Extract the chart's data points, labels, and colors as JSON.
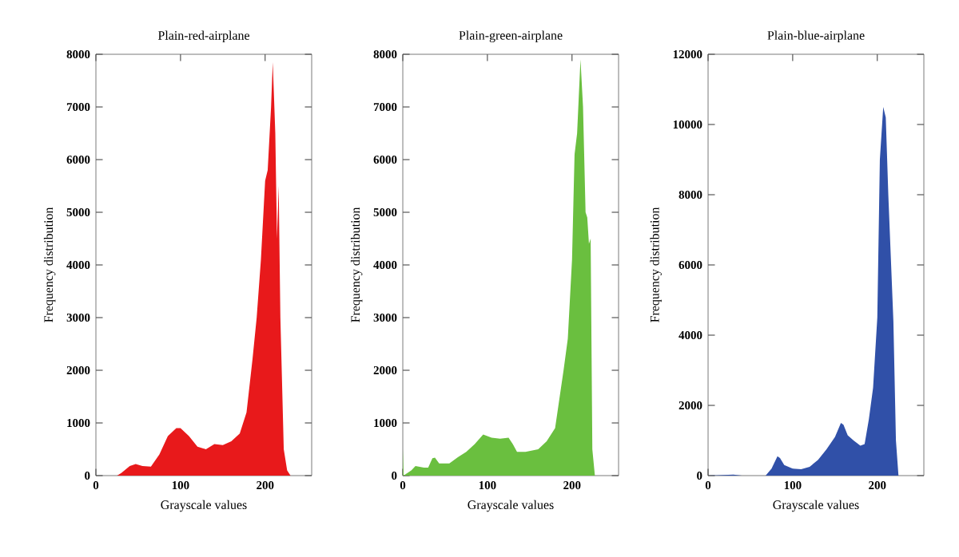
{
  "chart_data": [
    {
      "type": "area",
      "title": "Plain-red-airplane",
      "xlabel": "Grayscale values",
      "ylabel": "Frequency distribution",
      "color": "#e8191b",
      "xlim": [
        0,
        255
      ],
      "ylim": [
        0,
        8000
      ],
      "xticks": [
        0,
        100,
        200
      ],
      "yticks": [
        0,
        1000,
        2000,
        3000,
        4000,
        5000,
        6000,
        7000,
        8000
      ],
      "x": [
        0,
        25,
        30,
        40,
        47,
        55,
        65,
        75,
        85,
        95,
        100,
        110,
        120,
        130,
        140,
        150,
        160,
        170,
        178,
        185,
        190,
        195,
        200,
        203,
        207,
        209,
        212,
        214,
        216,
        218,
        222,
        226,
        230,
        255
      ],
      "values": [
        0,
        0,
        50,
        180,
        220,
        180,
        170,
        400,
        750,
        900,
        900,
        750,
        550,
        500,
        600,
        580,
        650,
        800,
        1200,
        2200,
        3000,
        4100,
        5600,
        5800,
        7000,
        7850,
        6500,
        4500,
        5500,
        3000,
        500,
        100,
        0,
        0
      ]
    },
    {
      "type": "area",
      "title": "Plain-green-airplane",
      "xlabel": "Grayscale values",
      "ylabel": "Frequency distribution",
      "color": "#6abf3f",
      "xlim": [
        0,
        255
      ],
      "ylim": [
        0,
        8000
      ],
      "xticks": [
        0,
        100,
        200
      ],
      "yticks": [
        0,
        1000,
        2000,
        3000,
        4000,
        5000,
        6000,
        7000,
        8000
      ],
      "x": [
        0,
        1,
        10,
        15,
        25,
        30,
        35,
        38,
        43,
        55,
        65,
        75,
        85,
        95,
        105,
        115,
        125,
        130,
        135,
        145,
        160,
        170,
        180,
        190,
        195,
        200,
        203,
        206,
        210,
        213,
        216,
        218,
        220,
        222,
        224,
        227,
        255
      ],
      "values": [
        500,
        0,
        100,
        180,
        150,
        150,
        330,
        340,
        230,
        230,
        350,
        450,
        600,
        780,
        720,
        700,
        720,
        600,
        450,
        450,
        500,
        650,
        900,
        2000,
        2600,
        4100,
        6100,
        6500,
        7900,
        7000,
        5000,
        4900,
        4400,
        4500,
        500,
        0,
        0
      ]
    },
    {
      "type": "area",
      "title": "Plain-blue-airplane",
      "xlabel": "Grayscale values",
      "ylabel": "Frequency distribution",
      "color": "#3050a8",
      "xlim": [
        0,
        255
      ],
      "ylim": [
        0,
        12000
      ],
      "xticks": [
        0,
        100,
        200
      ],
      "yticks": [
        0,
        2000,
        4000,
        6000,
        8000,
        10000,
        12000
      ],
      "x": [
        0,
        30,
        40,
        68,
        75,
        82,
        85,
        90,
        100,
        110,
        120,
        130,
        140,
        150,
        157,
        160,
        165,
        172,
        180,
        185,
        190,
        195,
        200,
        203,
        207,
        210,
        213,
        216,
        219,
        222,
        225,
        255
      ],
      "values": [
        0,
        30,
        0,
        0,
        200,
        550,
        500,
        300,
        200,
        180,
        250,
        450,
        750,
        1100,
        1500,
        1450,
        1150,
        1000,
        850,
        900,
        1600,
        2500,
        4500,
        9000,
        10500,
        10200,
        8000,
        6200,
        4400,
        1000,
        0,
        0
      ]
    }
  ]
}
